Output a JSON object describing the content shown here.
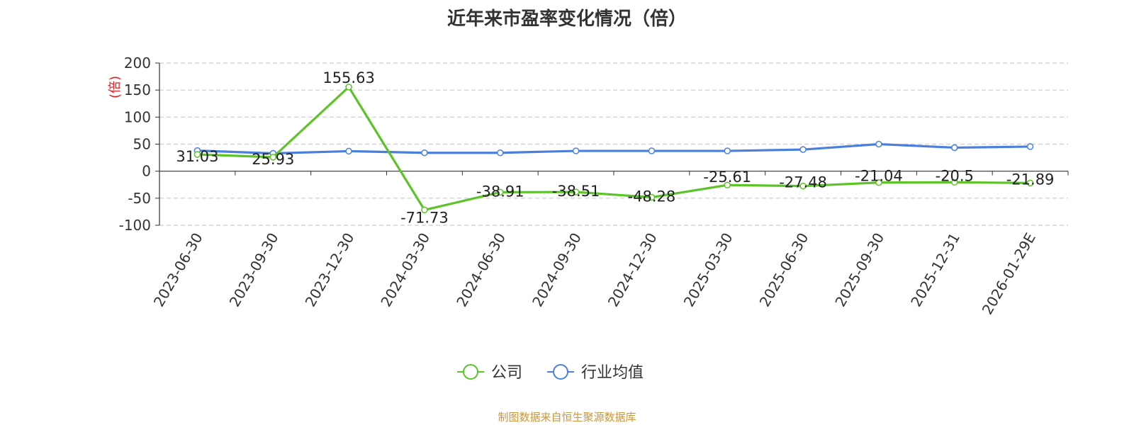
{
  "chart_data": {
    "type": "line",
    "title": "近年来市盈率变化情况（倍）",
    "ylabel": "(倍)",
    "xlabel": "",
    "categories": [
      "2023-06-30",
      "2023-09-30",
      "2023-12-30",
      "2024-03-30",
      "2024-06-30",
      "2024-09-30",
      "2024-12-30",
      "2025-03-30",
      "2025-06-30",
      "2025-09-30",
      "2025-12-31",
      "2026-01-29E"
    ],
    "ylim": [
      -100,
      200
    ],
    "yticks": [
      200,
      150,
      100,
      50,
      0,
      -50,
      -100
    ],
    "grid": true,
    "legend_position": "bottom",
    "series": [
      {
        "name": "公司",
        "color": "#5cc328",
        "show_labels": true,
        "values": [
          31.03,
          25.93,
          155.63,
          -71.73,
          -38.91,
          -38.51,
          -48.28,
          -25.61,
          -27.48,
          -21.04,
          -20.5,
          -21.89
        ],
        "labels": [
          "31.03",
          "25.93",
          "155.63",
          "-71.73",
          "-38.91",
          "-38.51",
          "-48.28",
          "-25.61",
          "-27.48",
          "-21.04",
          "-20.5",
          "-21.89"
        ]
      },
      {
        "name": "行业均值",
        "color": "#4a7fdc",
        "show_labels": false,
        "values": [
          38,
          33,
          37,
          34,
          34,
          37.5,
          37.5,
          37.5,
          40,
          50,
          43.5,
          45.5
        ]
      }
    ]
  },
  "source": "制图数据来自恒生聚源数据库"
}
